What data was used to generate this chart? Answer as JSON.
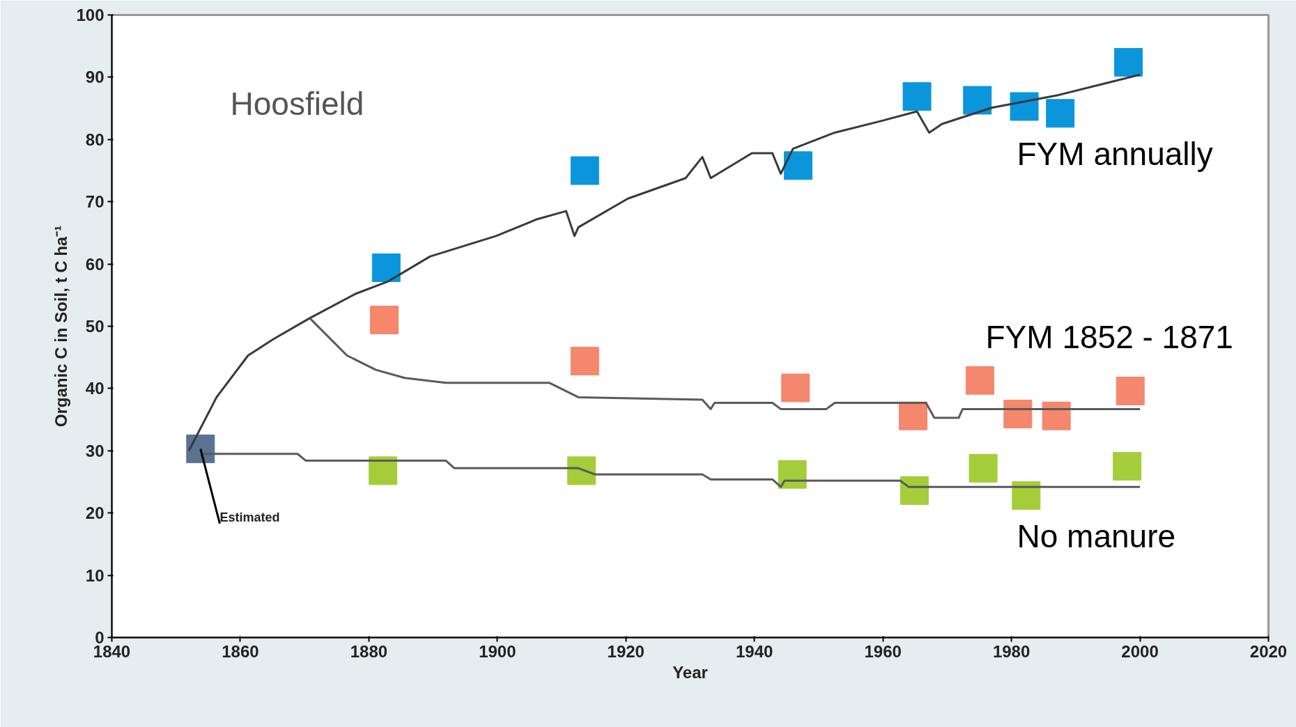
{
  "chart_data": {
    "type": "scatter",
    "xlabel": "Year",
    "ylabel": "Organic C in Soil, t C ha⁻¹",
    "xlim": [
      1840,
      2020
    ],
    "xticks": [
      1840,
      1860,
      1880,
      1900,
      1920,
      1940,
      1960,
      1980,
      2000,
      2020
    ],
    "ylim": [
      0,
      100
    ],
    "yticks": [
      0,
      10,
      20,
      30,
      40,
      50,
      60,
      70,
      80,
      90,
      100
    ],
    "grid": false,
    "marker": "square",
    "annotations": [
      "Hoosfield",
      "FYM annually",
      "FYM  1852 - 1871",
      "No manure",
      {
        "text": "Estimated",
        "x": 1853.8,
        "y": 30.3
      }
    ],
    "series": [
      {
        "type": "line",
        "marker": "none",
        "color": "#3a3a3a",
        "line_style": "solid",
        "x": [
          1852,
          1856.3,
          1861.2,
          1865.1,
          1870.8,
          1877.9,
          1883,
          1889.5,
          1899.8,
          1906.2,
          1910.7,
          1912,
          1912.6,
          1920.3,
          1929.3,
          1931.9,
          1933.2,
          1939.6,
          1942.8,
          1944.1,
          1946,
          1952.5,
          1960.2,
          1965.3,
          1967.2,
          1969.2,
          1976.9,
          1987.2,
          1994.9,
          2000
        ],
        "values": [
          30,
          38.6,
          45.3,
          47.9,
          51.3,
          55.2,
          57.2,
          61.2,
          64.5,
          67.2,
          68.5,
          64.5,
          65.9,
          70.5,
          73.8,
          77.2,
          73.8,
          77.8,
          77.8,
          74.5,
          78.5,
          81.1,
          83.1,
          84.5,
          81.1,
          82.5,
          85.1,
          87.1,
          89.1,
          90.4
        ]
      },
      {
        "type": "line",
        "marker": "none",
        "color": "#5a5a5a",
        "line_style": "solid",
        "x": [
          1870.8,
          1876.6,
          1881.1,
          1885.6,
          1892,
          1908.1,
          1912.6,
          1931.9,
          1933.2,
          1933.8,
          1942.8,
          1944.1,
          1951.2,
          1952.5,
          1966.7,
          1968,
          1971.8,
          1972.4,
          2000
        ],
        "values": [
          51.3,
          45.3,
          43,
          41.7,
          40.9,
          40.9,
          38.6,
          38.2,
          36.7,
          37.7,
          37.7,
          36.7,
          36.7,
          37.7,
          37.7,
          35.3,
          35.3,
          36.7,
          36.7
        ]
      },
      {
        "type": "line",
        "marker": "none",
        "color": "#5a5a5a",
        "line_style": "solid",
        "x": [
          1853.8,
          1868.9,
          1870.2,
          1892,
          1893.3,
          1912.6,
          1915.2,
          1931.9,
          1933.2,
          1942.8,
          1944.1,
          1944.7,
          1962.7,
          1964,
          2000
        ],
        "values": [
          29.5,
          29.5,
          28.4,
          28.4,
          27.2,
          27.2,
          26.2,
          26.2,
          25.4,
          25.4,
          24.2,
          25.2,
          25.2,
          24.2,
          24.2
        ]
      },
      {
        "color": "#0b96db",
        "x": [
          1882.7,
          1913.6,
          1946.8,
          1965.3,
          1974.7,
          1982,
          1987.6,
          1998.2
        ],
        "values": [
          59.4,
          75,
          75.8,
          86.9,
          86.3,
          85.3,
          84.2,
          92.4
        ]
      },
      {
        "color": "#f5876c",
        "x": [
          1882.4,
          1913.6,
          1946.4,
          1964.7,
          1975.1,
          1981,
          1987,
          1998.5
        ],
        "values": [
          51,
          44.4,
          40.1,
          35.6,
          41.3,
          35.9,
          35.6,
          39.6
        ]
      },
      {
        "color": "#a5cd39",
        "x": [
          1882.2,
          1913.1,
          1945.9,
          1964.9,
          1975.6,
          1982.3,
          1998
        ],
        "values": [
          26.8,
          26.8,
          26.2,
          23.6,
          27.2,
          22.8,
          27.5
        ]
      },
      {
        "color": "#5a7391",
        "x": [
          1853.8
        ],
        "values": [
          30.3
        ]
      }
    ]
  }
}
